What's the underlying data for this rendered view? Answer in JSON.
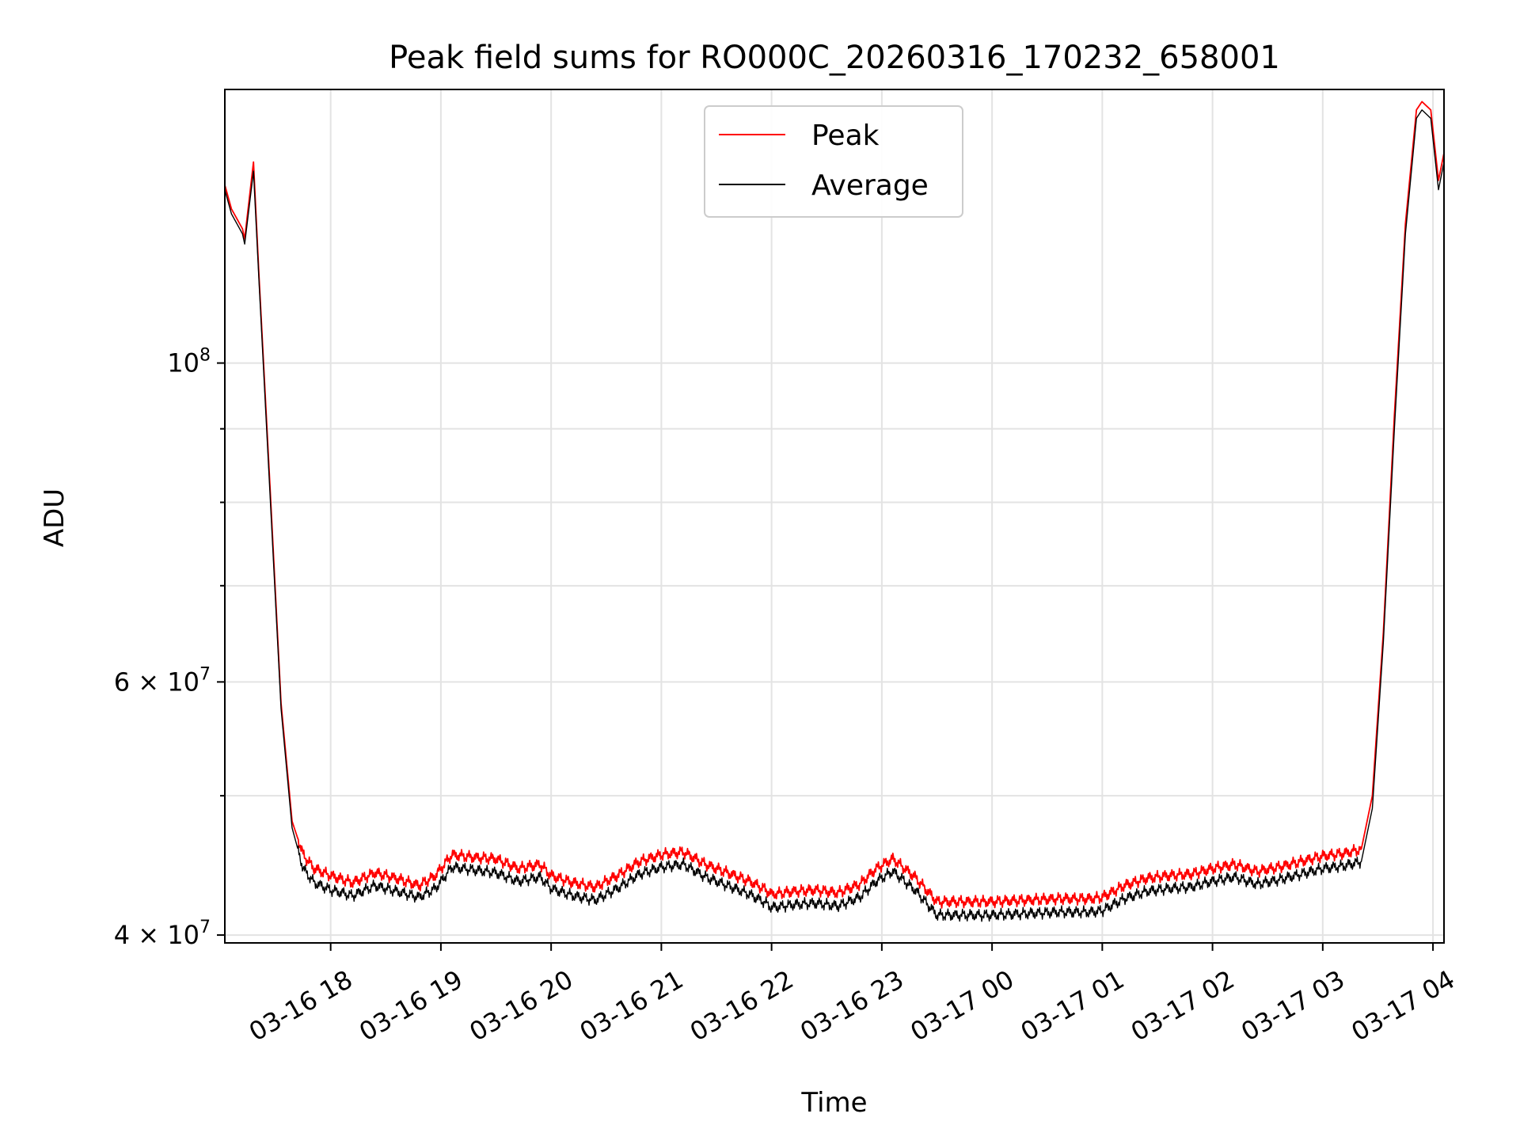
{
  "chart_data": {
    "type": "line",
    "title": "Peak field sums for RO000C_20260316_170232_658001",
    "xlabel": "Time",
    "ylabel": "ADU",
    "y_scale": "log",
    "ylim": [
      39500000,
      155000000
    ],
    "x_range_hours": [
      17.04,
      28.1
    ],
    "grid": true,
    "legend_position": "top-center",
    "x_ticks": [
      {
        "hour": 18,
        "label": "03-16 18"
      },
      {
        "hour": 19,
        "label": "03-16 19"
      },
      {
        "hour": 20,
        "label": "03-16 20"
      },
      {
        "hour": 21,
        "label": "03-16 21"
      },
      {
        "hour": 22,
        "label": "03-16 22"
      },
      {
        "hour": 23,
        "label": "03-16 23"
      },
      {
        "hour": 24,
        "label": "03-17 00"
      },
      {
        "hour": 25,
        "label": "03-17 01"
      },
      {
        "hour": 26,
        "label": "03-17 02"
      },
      {
        "hour": 27,
        "label": "03-17 03"
      },
      {
        "hour": 28,
        "label": "03-17 04"
      }
    ],
    "y_major_ticks": [
      {
        "value": 40000000,
        "base": "4 × 10",
        "exp": "7"
      },
      {
        "value": 60000000,
        "base": "6 × 10",
        "exp": "7"
      },
      {
        "value": 100000000,
        "base": "10",
        "exp": "8"
      }
    ],
    "y_minor_ticks": [
      50000000,
      70000000,
      80000000,
      90000000
    ],
    "series": [
      {
        "name": "Peak",
        "color": "#ff0000",
        "x": [
          17.04,
          17.1,
          17.2,
          17.22,
          17.3,
          17.35,
          17.45,
          17.55,
          17.65,
          17.75,
          17.85,
          18.0,
          18.2,
          18.4,
          18.6,
          18.8,
          18.95,
          19.1,
          19.3,
          19.5,
          19.7,
          19.9,
          20.0,
          20.2,
          20.4,
          20.6,
          20.8,
          21.0,
          21.2,
          21.4,
          21.6,
          21.8,
          21.95,
          22.0,
          22.2,
          22.4,
          22.6,
          22.8,
          22.95,
          23.1,
          23.3,
          23.5,
          23.7,
          24.0,
          24.3,
          24.6,
          24.9,
          25.0,
          25.2,
          25.4,
          25.6,
          25.8,
          26.0,
          26.2,
          26.4,
          26.6,
          26.8,
          27.0,
          27.2,
          27.35,
          27.45,
          27.55,
          27.65,
          27.75,
          27.85,
          27.9,
          27.98,
          28.05,
          28.1
        ],
        "values": [
          133000000,
          128000000,
          124000000,
          122000000,
          138000000,
          115000000,
          82000000,
          58000000,
          48000000,
          45500000,
          44500000,
          44000000,
          43500000,
          44200000,
          43800000,
          43300000,
          44000000,
          45500000,
          45300000,
          45200000,
          44500000,
          44800000,
          44000000,
          43500000,
          43200000,
          44000000,
          45000000,
          45500000,
          45700000,
          44800000,
          44200000,
          43600000,
          43000000,
          42700000,
          42900000,
          43000000,
          42800000,
          43400000,
          44500000,
          45200000,
          43900000,
          42200000,
          42200000,
          42200000,
          42300000,
          42400000,
          42400000,
          42500000,
          43300000,
          43800000,
          44000000,
          44100000,
          44500000,
          44800000,
          44300000,
          44600000,
          45000000,
          45400000,
          45600000,
          45900000,
          50000000,
          65000000,
          92000000,
          125000000,
          150000000,
          152000000,
          150000000,
          134000000,
          140000000
        ]
      },
      {
        "name": "Average",
        "color": "#000000",
        "x": [
          17.04,
          17.1,
          17.2,
          17.22,
          17.3,
          17.35,
          17.45,
          17.55,
          17.65,
          17.75,
          17.85,
          18.0,
          18.2,
          18.4,
          18.6,
          18.8,
          18.95,
          19.1,
          19.3,
          19.5,
          19.7,
          19.9,
          20.0,
          20.2,
          20.4,
          20.6,
          20.8,
          21.0,
          21.2,
          21.4,
          21.6,
          21.8,
          21.95,
          22.0,
          22.2,
          22.4,
          22.6,
          22.8,
          22.95,
          23.1,
          23.3,
          23.5,
          23.7,
          24.0,
          24.3,
          24.6,
          24.9,
          25.0,
          25.2,
          25.4,
          25.6,
          25.8,
          26.0,
          26.2,
          26.4,
          26.6,
          26.8,
          27.0,
          27.2,
          27.35,
          27.45,
          27.55,
          27.65,
          27.75,
          27.85,
          27.9,
          27.98,
          28.05,
          28.1
        ],
        "values": [
          132000000,
          127000000,
          123000000,
          121000000,
          136000000,
          114000000,
          81000000,
          57500000,
          47500000,
          44500000,
          43500000,
          43000000,
          42600000,
          43300000,
          42900000,
          42500000,
          43100000,
          44600000,
          44400000,
          44200000,
          43600000,
          43900000,
          43100000,
          42600000,
          42300000,
          43100000,
          44100000,
          44600000,
          44800000,
          43900000,
          43300000,
          42700000,
          42100000,
          41800000,
          42000000,
          42100000,
          41900000,
          42500000,
          43600000,
          44300000,
          43000000,
          41300000,
          41300000,
          41300000,
          41400000,
          41500000,
          41500000,
          41600000,
          42400000,
          42900000,
          43100000,
          43200000,
          43600000,
          43900000,
          43400000,
          43700000,
          44100000,
          44500000,
          44700000,
          45000000,
          49000000,
          64000000,
          90000000,
          123000000,
          148000000,
          150000000,
          148000000,
          132000000,
          138000000
        ]
      }
    ]
  }
}
